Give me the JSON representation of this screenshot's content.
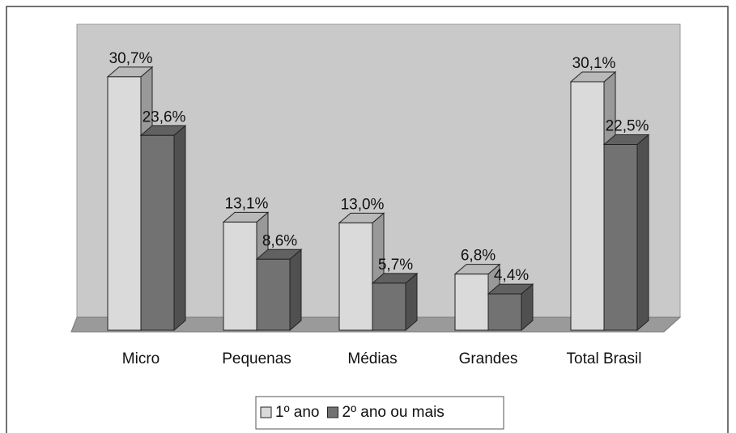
{
  "chart_data": {
    "type": "bar3d",
    "categories": [
      "Micro",
      "Pequenas",
      "Médias",
      "Grandes",
      "Total Brasil"
    ],
    "series": [
      {
        "name": "1º ano",
        "color": "#dadada",
        "values": [
          30.7,
          13.1,
          13.0,
          6.8,
          30.1
        ],
        "value_labels": [
          "30,7%",
          "13,1%",
          "13,0%",
          "6,8%",
          "30,1%"
        ]
      },
      {
        "name": "2º ano ou mais",
        "color": "#727272",
        "values": [
          23.6,
          8.6,
          5.7,
          4.4,
          22.5
        ],
        "value_labels": [
          "23,6%",
          "8,6%",
          "5,7%",
          "4,4%",
          "22,5%"
        ]
      }
    ],
    "legend": "bottom"
  }
}
